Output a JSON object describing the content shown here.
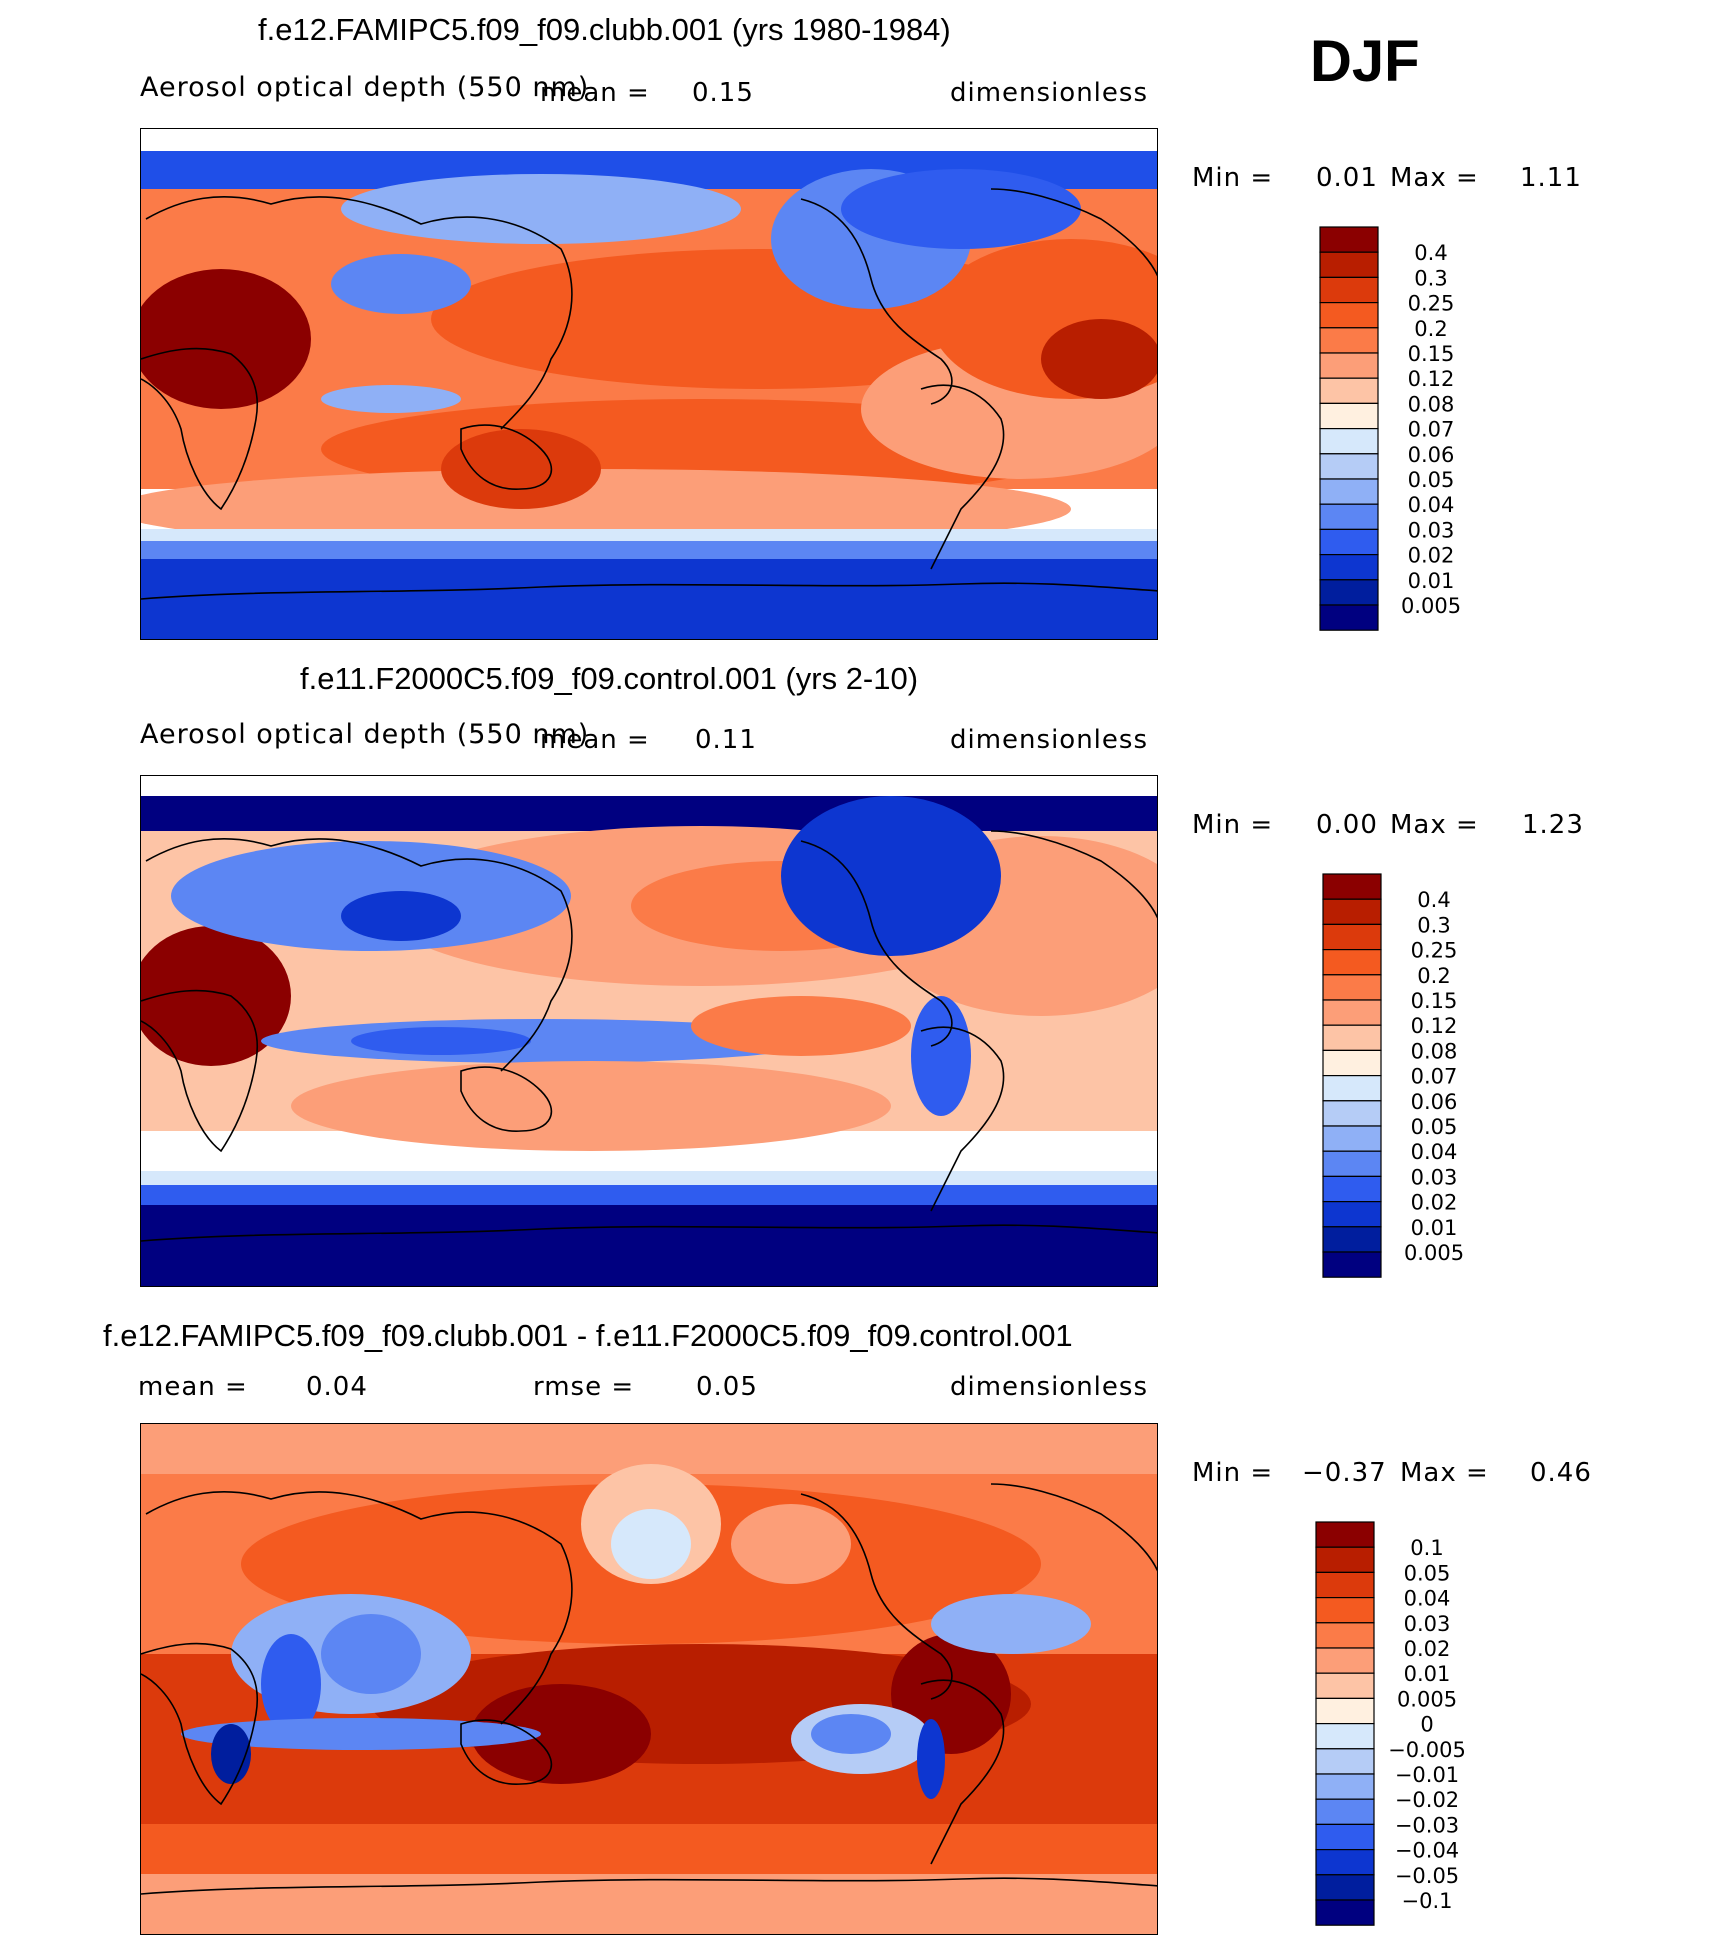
{
  "season": "DJF",
  "colors": {
    "blue_dark": "#000080",
    "blue_mid": "#1a44e8",
    "blue_light": "#8fb0f6",
    "white": "#fff0e6",
    "red_light": "#fbb092",
    "red_mid": "#f06a3a",
    "red_dark": "#8b0000",
    "coast": "#000000"
  },
  "chart_data": [
    {
      "type": "heatmap",
      "title": "f.e12.FAMIPC5.f09_f09.clubb.001 (yrs 1980-1984)",
      "variable": "Aerosol optical depth (550 nm)",
      "mean_label": "mean =",
      "mean": "0.15",
      "units": "dimensionless",
      "min_label": "Min =",
      "min": "0.01",
      "max_label": "Max =",
      "max": "1.11",
      "colorbar_levels": [
        "0.4",
        "0.3",
        "0.25",
        "0.2",
        "0.15",
        "0.12",
        "0.08",
        "0.07",
        "0.06",
        "0.05",
        "0.04",
        "0.03",
        "0.02",
        "0.01",
        "0.005"
      ],
      "colorbar_colors": [
        "#8b0000",
        "#b81e00",
        "#dc3a0c",
        "#f45a20",
        "#fb7b48",
        "#fc9e78",
        "#fdc4a6",
        "#fff0e0",
        "#d6e8fb",
        "#b5ccf6",
        "#8fb0f6",
        "#5c86f3",
        "#2f5cef",
        "#0d36d0",
        "#001e9e",
        "#000080"
      ]
    },
    {
      "type": "heatmap",
      "title": "f.e11.F2000C5.f09_f09.control.001 (yrs 2-10)",
      "variable": "Aerosol optical depth (550 nm)",
      "mean_label": "mean =",
      "mean": "0.11",
      "units": "dimensionless",
      "min_label": "Min =",
      "min": "0.00",
      "max_label": "Max =",
      "max": "1.23",
      "colorbar_levels": [
        "0.4",
        "0.3",
        "0.25",
        "0.2",
        "0.15",
        "0.12",
        "0.08",
        "0.07",
        "0.06",
        "0.05",
        "0.04",
        "0.03",
        "0.02",
        "0.01",
        "0.005"
      ],
      "colorbar_colors": [
        "#8b0000",
        "#b81e00",
        "#dc3a0c",
        "#f45a20",
        "#fb7b48",
        "#fc9e78",
        "#fdc4a6",
        "#fff0e0",
        "#d6e8fb",
        "#b5ccf6",
        "#8fb0f6",
        "#5c86f3",
        "#2f5cef",
        "#0d36d0",
        "#001e9e",
        "#000080"
      ]
    },
    {
      "type": "heatmap",
      "title": "f.e12.FAMIPC5.f09_f09.clubb.001 - f.e11.F2000C5.f09_f09.control.001",
      "mean_label": "mean =",
      "mean": "0.04",
      "rmse_label": "rmse =",
      "rmse": "0.05",
      "units": "dimensionless",
      "min_label": "Min =",
      "min": "−0.37",
      "max_label": "Max =",
      "max": "0.46",
      "colorbar_levels": [
        "0.1",
        "0.05",
        "0.04",
        "0.03",
        "0.02",
        "0.01",
        "0.005",
        "0",
        "−0.005",
        "−0.01",
        "−0.02",
        "−0.03",
        "−0.04",
        "−0.05",
        "−0.1"
      ],
      "colorbar_colors": [
        "#8b0000",
        "#b81e00",
        "#dc3a0c",
        "#f45a20",
        "#fb7b48",
        "#fc9e78",
        "#fdc4a6",
        "#fff0e0",
        "#d6e8fb",
        "#b5ccf6",
        "#8fb0f6",
        "#5c86f3",
        "#2f5cef",
        "#0d36d0",
        "#001e9e",
        "#000080"
      ]
    }
  ]
}
